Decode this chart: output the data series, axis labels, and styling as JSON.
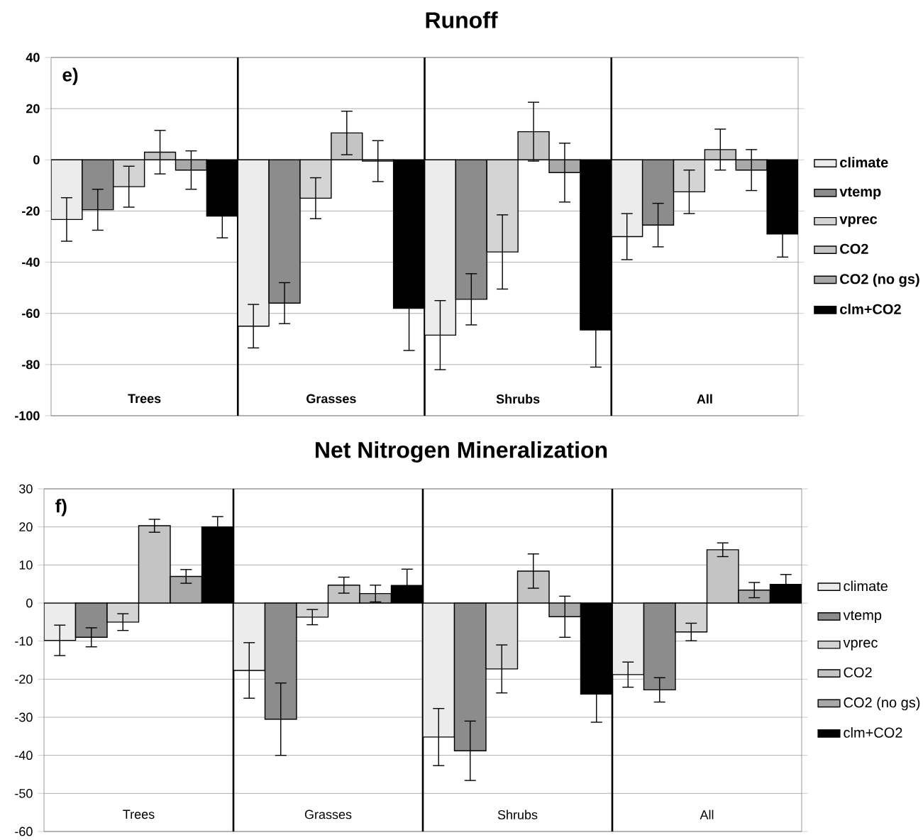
{
  "chart_data": [
    {
      "type": "bar",
      "title": "Runoff",
      "categories": [
        "Trees",
        "Grasses",
        "Shrubs",
        "All"
      ],
      "ylim": [
        -100,
        40
      ],
      "yticks": [
        -100,
        -80,
        -60,
        -40,
        -20,
        0,
        20,
        40
      ],
      "grid": "y",
      "legend": "right",
      "annotations": [
        "e)"
      ],
      "series": [
        {
          "name": "climate",
          "color": "#ececec",
          "values": [
            -23.3,
            -65,
            -68.5,
            -30
          ],
          "errors": [
            8.5,
            8.5,
            13.5,
            9
          ]
        },
        {
          "name": "vtemp",
          "color": "#8c8c8c",
          "values": [
            -19.5,
            -56,
            -54.5,
            -25.5
          ],
          "errors": [
            8,
            8,
            10,
            8.5
          ]
        },
        {
          "name": "vprec",
          "color": "#d4d4d4",
          "values": [
            -10.5,
            -15,
            -36,
            -12.5
          ],
          "errors": [
            8,
            8,
            14.5,
            8.5
          ]
        },
        {
          "name": "CO2",
          "color": "#c4c4c4",
          "values": [
            3,
            10.5,
            11,
            4
          ],
          "errors": [
            8.5,
            8.5,
            11.5,
            8
          ]
        },
        {
          "name": "CO2 (no gs)",
          "color": "#a8a8a8",
          "values": [
            -4,
            -0.5,
            -5,
            -4
          ],
          "errors": [
            7.5,
            8,
            11.5,
            8
          ]
        },
        {
          "name": "clm+CO2",
          "color": "#000000",
          "values": [
            -22,
            -58,
            -66.5,
            -29
          ],
          "errors": [
            8.5,
            16.5,
            14.5,
            9
          ]
        }
      ]
    },
    {
      "type": "bar",
      "title": "Net Nitrogen Mineralization",
      "categories": [
        "Trees",
        "Grasses",
        "Shrubs",
        "All"
      ],
      "ylim": [
        -60,
        30
      ],
      "yticks": [
        -60,
        -50,
        -40,
        -30,
        -20,
        -10,
        0,
        10,
        20,
        30
      ],
      "grid": "y",
      "legend": "right",
      "annotations": [
        "f)"
      ],
      "series": [
        {
          "name": "climate",
          "color": "#ececec",
          "values": [
            -9.8,
            -17.7,
            -35.2,
            -18.8
          ],
          "errors": [
            4,
            7.3,
            7.5,
            3.3
          ]
        },
        {
          "name": "vtemp",
          "color": "#8c8c8c",
          "values": [
            -9,
            -30.5,
            -38.8,
            -22.8
          ],
          "errors": [
            2.5,
            9.5,
            7.8,
            3.2
          ]
        },
        {
          "name": "vprec",
          "color": "#d4d4d4",
          "values": [
            -5,
            -3.7,
            -17.3,
            -7.6
          ],
          "errors": [
            2.2,
            2,
            6.3,
            2.3
          ]
        },
        {
          "name": "CO2",
          "color": "#c4c4c4",
          "values": [
            20.3,
            4.7,
            8.4,
            14
          ],
          "errors": [
            1.7,
            2.1,
            4.5,
            1.8
          ]
        },
        {
          "name": "CO2 (no gs)",
          "color": "#a8a8a8",
          "values": [
            7,
            2.5,
            -3.6,
            3.4
          ],
          "errors": [
            1.8,
            2.2,
            5.4,
            2
          ]
        },
        {
          "name": "clm+CO2",
          "color": "#000000",
          "values": [
            20,
            4.6,
            -23.9,
            4.9
          ],
          "errors": [
            2.7,
            4.3,
            7.4,
            2.6
          ]
        }
      ]
    }
  ]
}
